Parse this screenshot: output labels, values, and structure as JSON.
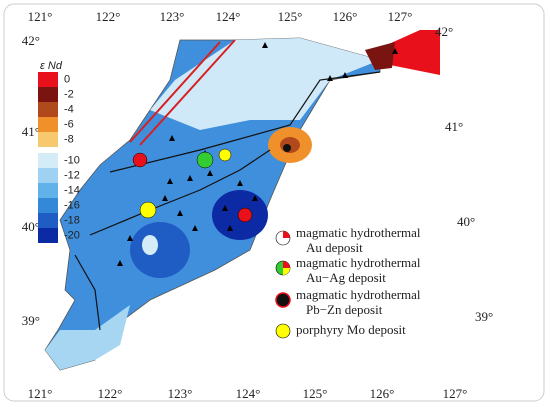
{
  "map": {
    "longitudes_top": [
      "121°",
      "122°",
      "123°",
      "124°",
      "125°",
      "126°",
      "127°"
    ],
    "longitudes_bottom": [
      "121°",
      "122°",
      "123°",
      "124°",
      "125°",
      "126°",
      "127°"
    ],
    "latitudes_left": [
      "42°",
      "41°",
      "40°",
      "39°"
    ],
    "latitudes_right": [
      "42°",
      "41°",
      "40°",
      "39°"
    ],
    "colorbar": {
      "title": "ε Nd",
      "ticks": [
        0,
        -2,
        -4,
        -6,
        -8,
        -10,
        -12,
        -14,
        -16,
        -18,
        -20
      ],
      "colors": [
        "#e8101a",
        "#7a1410",
        "#b04a1c",
        "#f0902a",
        "#f8c86e",
        "#d3ecf8",
        "#9fd2f2",
        "#62b2ea",
        "#3388d8",
        "#1f5cc4",
        "#0b2aa3"
      ]
    },
    "legend": [
      {
        "lines": [
          "magmatic hydrothermal",
          "Au deposit"
        ]
      },
      {
        "lines": [
          "magmatic hydrothermal",
          "Au−Ag deposit"
        ]
      },
      {
        "lines": [
          "magmatic hydrothermal",
          "Pb−Zn deposit"
        ]
      },
      {
        "lines": [
          "porphyry Mo deposit"
        ]
      }
    ]
  }
}
